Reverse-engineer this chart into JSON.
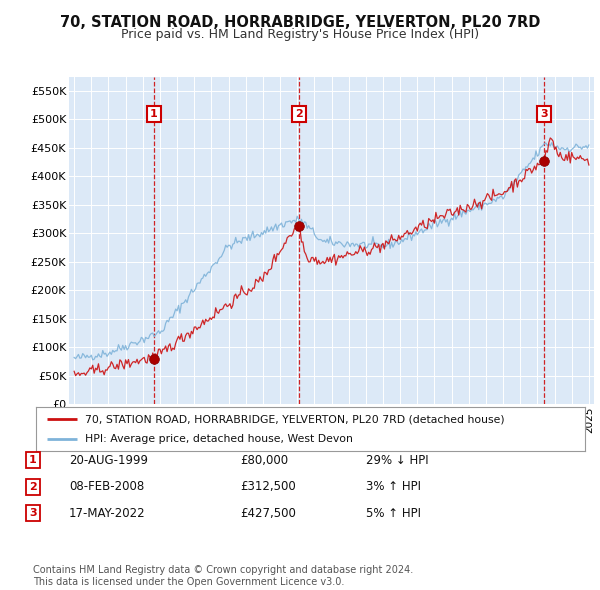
{
  "title": "70, STATION ROAD, HORRABRIDGE, YELVERTON, PL20 7RD",
  "subtitle": "Price paid vs. HM Land Registry's House Price Index (HPI)",
  "title_fontsize": 10.5,
  "subtitle_fontsize": 9,
  "ylim": [
    0,
    575000
  ],
  "yticks": [
    0,
    50000,
    100000,
    150000,
    200000,
    250000,
    300000,
    350000,
    400000,
    450000,
    500000,
    550000
  ],
  "ytick_labels": [
    "£0",
    "£50K",
    "£100K",
    "£150K",
    "£200K",
    "£250K",
    "£300K",
    "£350K",
    "£400K",
    "£450K",
    "£500K",
    "£550K"
  ],
  "xlim_start": 1994.7,
  "xlim_end": 2025.3,
  "background_color": "#ffffff",
  "plot_bg_color": "#dce9f7",
  "grid_color": "#ffffff",
  "sales": [
    {
      "year": 1999.64,
      "price": 80000,
      "label": "1"
    },
    {
      "year": 2008.1,
      "price": 312500,
      "label": "2"
    },
    {
      "year": 2022.38,
      "price": 427500,
      "label": "3"
    }
  ],
  "sale_marker_color": "#aa0000",
  "sale_line_color": "#cc0000",
  "sale_box_color": "#cc0000",
  "hpi_line_color": "#7fb3d9",
  "price_line_color": "#cc1111",
  "legend_house_label": "70, STATION ROAD, HORRABRIDGE, YELVERTON, PL20 7RD (detached house)",
  "legend_hpi_label": "HPI: Average price, detached house, West Devon",
  "footer_text": "Contains HM Land Registry data © Crown copyright and database right 2024.\nThis data is licensed under the Open Government Licence v3.0.",
  "table_entries": [
    {
      "num": "1",
      "date": "20-AUG-1999",
      "price": "£80,000",
      "hpi": "29% ↓ HPI"
    },
    {
      "num": "2",
      "date": "08-FEB-2008",
      "price": "£312,500",
      "hpi": "3% ↑ HPI"
    },
    {
      "num": "3",
      "date": "17-MAY-2022",
      "price": "£427,500",
      "hpi": "5% ↑ HPI"
    }
  ]
}
